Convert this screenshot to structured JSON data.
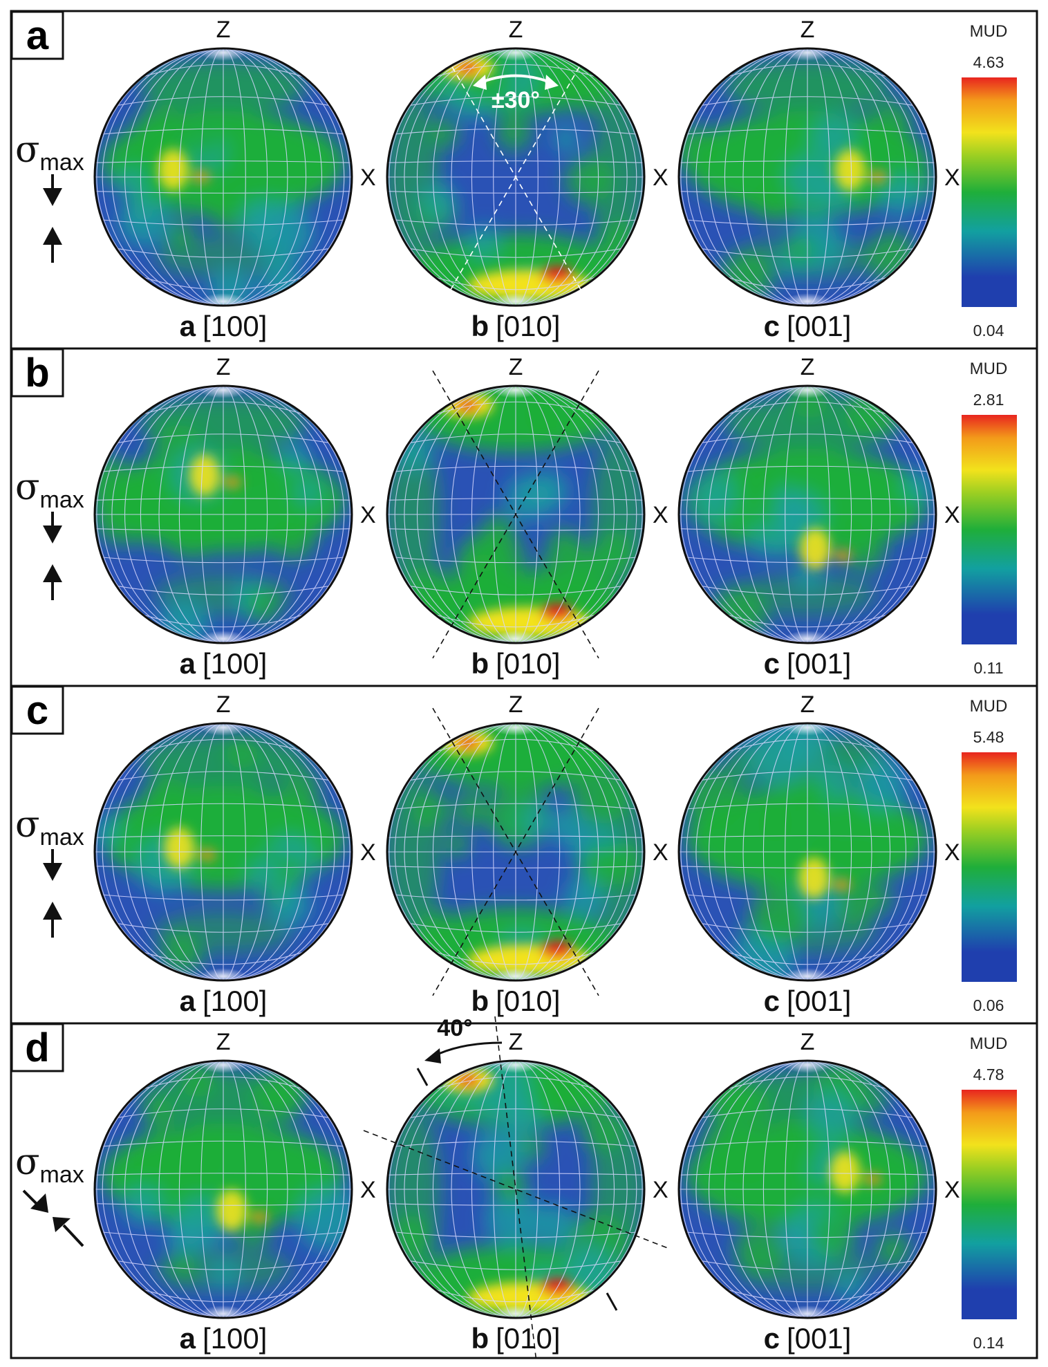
{
  "figure": {
    "colors": {
      "low": "#1f3fae",
      "mid": "#1fae3a",
      "yellow": "#f2e21c",
      "orange": "#f39a1a",
      "high": "#e8251f",
      "grid": "#d8d8ff"
    },
    "colorbar_title": "MUD",
    "axis_z": "Z",
    "axis_x": "X",
    "sigma_symbol": "σ",
    "sigma_sub": "max",
    "pole_figures": [
      {
        "bold": "a",
        "index": "[100]"
      },
      {
        "bold": "b",
        "index": "[010]"
      },
      {
        "bold": "c",
        "index": "[001]"
      }
    ],
    "panels": [
      {
        "letter": "a",
        "mud_max": "4.63",
        "mud_min": "0.04",
        "stress": "vertical",
        "angle_label": "±30°",
        "shape": "x"
      },
      {
        "letter": "b",
        "mud_max": "2.81",
        "mud_min": "0.11",
        "stress": "vertical",
        "angle_label": "",
        "shape": "x"
      },
      {
        "letter": "c",
        "mud_max": "5.48",
        "mud_min": "0.06",
        "stress": "vertical",
        "angle_label": "",
        "shape": "x"
      },
      {
        "letter": "d",
        "mud_max": "4.78",
        "mud_min": "0.14",
        "stress": "inclined",
        "angle_label": "40°",
        "shape": "rotated"
      }
    ]
  }
}
